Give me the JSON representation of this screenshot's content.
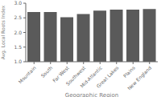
{
  "chart_data": {
    "type": "bar",
    "categories": [
      "Mountain",
      "South",
      "Far West",
      "Southwest",
      "Mid-Atlantic",
      "Great Lakes",
      "Plains",
      "New England"
    ],
    "values": [
      2.7,
      2.7,
      2.52,
      2.63,
      2.75,
      2.78,
      2.78,
      2.8
    ],
    "color": "#5a5a5a",
    "xlabel": "Geographic Region",
    "ylabel": "Avg. Local Roots Index",
    "ylim": [
      1.0,
      3.0
    ],
    "yticks": [
      {
        "value": 1.0,
        "label": "1.0"
      },
      1.5,
      {
        "value": 2.0,
        "label": "2.0"
      },
      2.5,
      {
        "value": 3.0,
        "label": "3.0"
      }
    ],
    "grid": false
  }
}
